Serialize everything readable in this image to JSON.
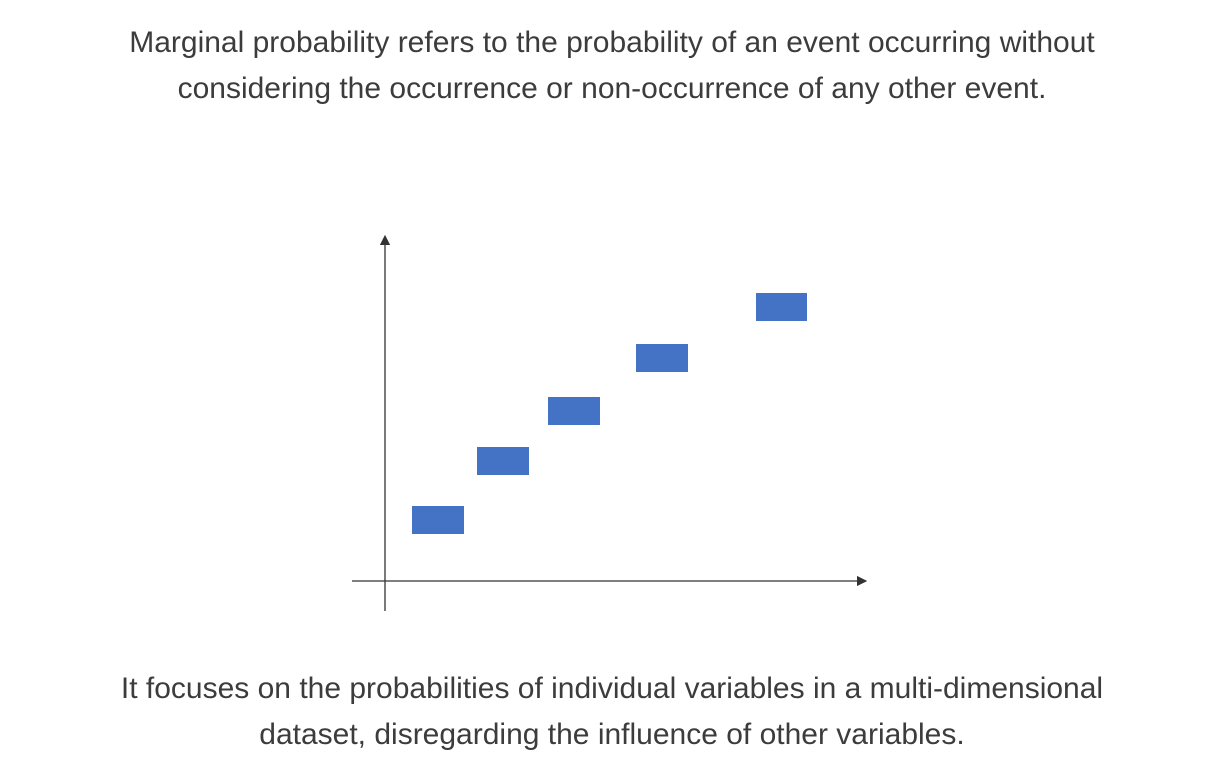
{
  "top_text": {
    "line1": "Marginal probability refers to the probability of an event occurring without",
    "line2": "considering the occurrence or non-occurrence of any other event."
  },
  "bottom_text": {
    "line1": "It focuses on the probabilities of individual variables in a multi-dimensional",
    "line2": "dataset, disregarding the influence of other variables."
  },
  "diagram": {
    "bar_color": "#4472c4",
    "axis_color": "#333333",
    "block_count": 5
  }
}
